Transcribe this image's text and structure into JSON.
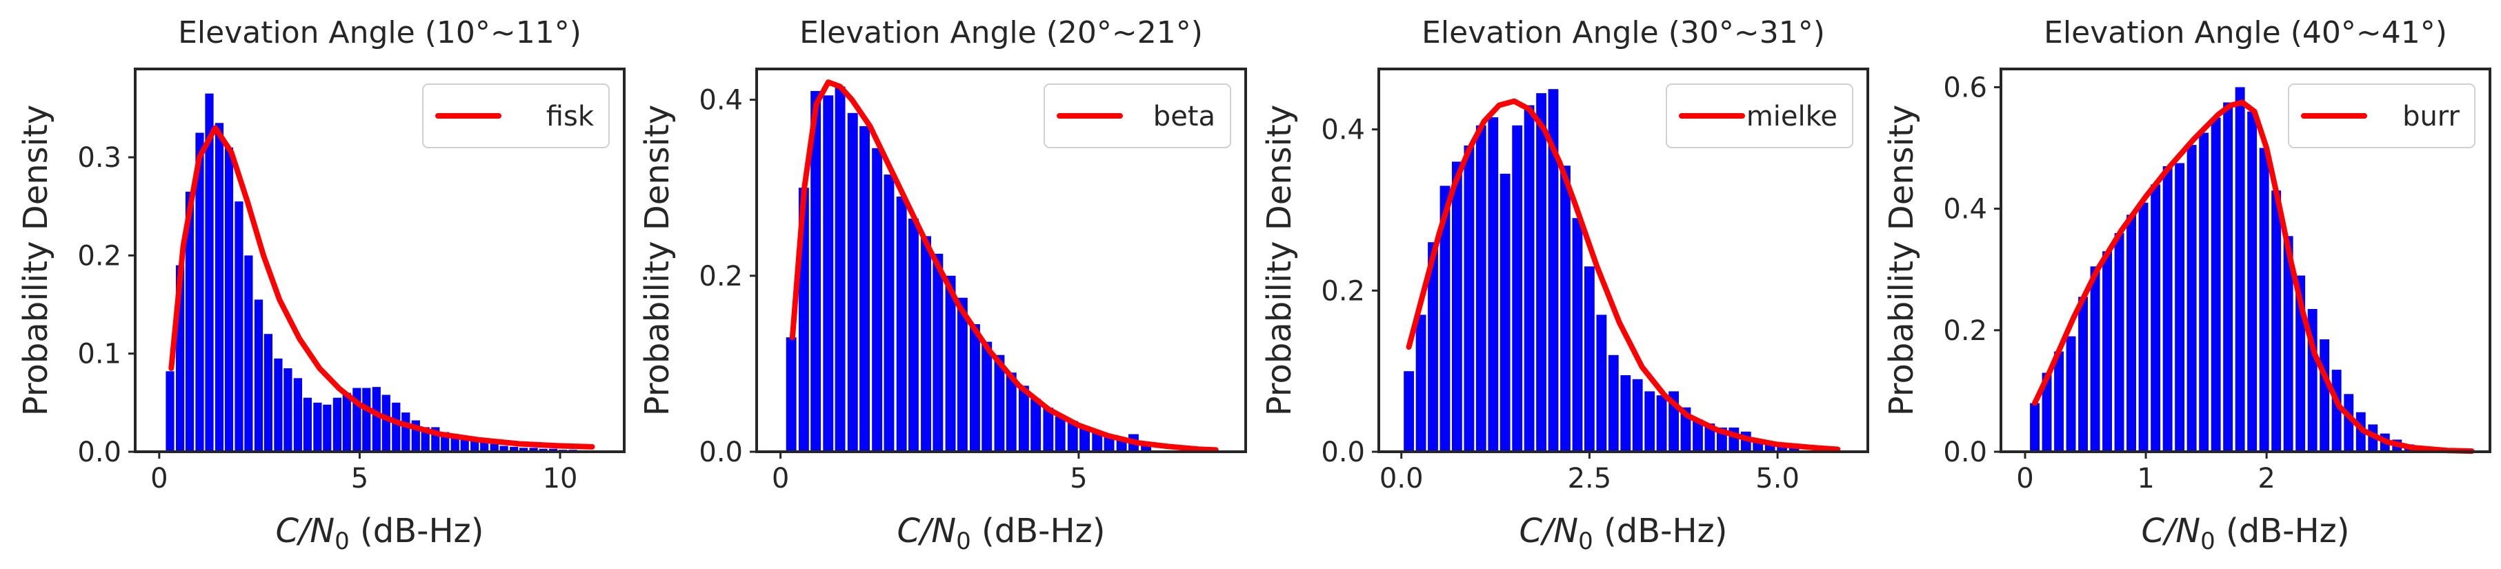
{
  "chart_data": [
    {
      "type": "bar",
      "title": "Elevation Angle (10°~11°)",
      "xlabel": "C/N0 (dB-Hz)",
      "ylabel": "Probability Density",
      "xlim": [
        -0.6,
        11.6
      ],
      "ylim": [
        0,
        0.39
      ],
      "xticks": [
        0,
        5,
        10
      ],
      "xtick_labels": [
        "0",
        "5",
        "10"
      ],
      "yticks": [
        0.0,
        0.1,
        0.2,
        0.3
      ],
      "ytick_labels": [
        "0.0",
        "0.1",
        "0.2",
        "0.3"
      ],
      "bar_color": "#0000ff",
      "bin_width": 0.245,
      "hist_centers": [
        0.27,
        0.52,
        0.76,
        1.01,
        1.25,
        1.5,
        1.74,
        1.99,
        2.23,
        2.48,
        2.72,
        2.97,
        3.21,
        3.46,
        3.7,
        3.95,
        4.19,
        4.44,
        4.68,
        4.93,
        5.17,
        5.42,
        5.66,
        5.91,
        6.15,
        6.4,
        6.64,
        6.89,
        7.13,
        7.38,
        7.62,
        7.87,
        8.11,
        8.36,
        8.6,
        8.85,
        9.09,
        9.34,
        9.58,
        9.83,
        10.07,
        10.32
      ],
      "hist_values": [
        0.082,
        0.19,
        0.265,
        0.325,
        0.365,
        0.335,
        0.31,
        0.255,
        0.2,
        0.155,
        0.12,
        0.095,
        0.085,
        0.075,
        0.055,
        0.05,
        0.048,
        0.055,
        0.06,
        0.065,
        0.065,
        0.066,
        0.058,
        0.05,
        0.04,
        0.032,
        0.025,
        0.025,
        0.02,
        0.018,
        0.015,
        0.012,
        0.01,
        0.008,
        0.006,
        0.005,
        0.004,
        0.004,
        0.003,
        0.003,
        0.002,
        0.002
      ],
      "series": [
        {
          "name": "fisk",
          "color": "#ff0000",
          "x": [
            0.3,
            0.6,
            1.0,
            1.4,
            1.8,
            2.2,
            2.6,
            3.0,
            3.5,
            4.0,
            4.5,
            5.0,
            5.5,
            6.0,
            7.0,
            8.0,
            9.0,
            10.0,
            10.8
          ],
          "y": [
            0.085,
            0.21,
            0.3,
            0.33,
            0.305,
            0.255,
            0.2,
            0.155,
            0.115,
            0.085,
            0.064,
            0.048,
            0.037,
            0.029,
            0.018,
            0.012,
            0.008,
            0.006,
            0.005
          ]
        }
      ],
      "legend_position": "top-right",
      "grid": false
    },
    {
      "type": "bar",
      "title": "Elevation Angle (20°~21°)",
      "xlabel": "C/N0 (dB-Hz)",
      "ylabel": "Probability Density",
      "xlim": [
        -0.4,
        7.8
      ],
      "ylim": [
        0,
        0.435
      ],
      "xticks": [
        0,
        5
      ],
      "xtick_labels": [
        "0",
        "5"
      ],
      "yticks": [
        0.0,
        0.2,
        0.4
      ],
      "ytick_labels": [
        "0.0",
        "0.2",
        "0.4"
      ],
      "bar_color": "#0000ff",
      "bin_width": 0.2,
      "hist_centers": [
        0.18,
        0.39,
        0.59,
        0.8,
        1.0,
        1.21,
        1.41,
        1.62,
        1.82,
        2.03,
        2.23,
        2.44,
        2.64,
        2.85,
        3.05,
        3.26,
        3.46,
        3.67,
        3.87,
        4.08,
        4.28,
        4.49,
        4.69,
        4.9,
        5.1,
        5.31,
        5.51,
        5.72,
        5.92,
        6.13
      ],
      "hist_values": [
        0.13,
        0.3,
        0.41,
        0.405,
        0.415,
        0.385,
        0.37,
        0.345,
        0.315,
        0.29,
        0.265,
        0.245,
        0.225,
        0.2,
        0.175,
        0.145,
        0.125,
        0.11,
        0.09,
        0.075,
        0.06,
        0.05,
        0.04,
        0.035,
        0.028,
        0.022,
        0.018,
        0.015,
        0.02,
        0.01
      ],
      "series": [
        {
          "name": "beta",
          "color": "#ff0000",
          "x": [
            0.2,
            0.4,
            0.6,
            0.8,
            1.0,
            1.2,
            1.5,
            2.0,
            2.5,
            3.0,
            3.5,
            4.0,
            4.5,
            5.0,
            5.5,
            6.0,
            6.5,
            7.0,
            7.3
          ],
          "y": [
            0.13,
            0.3,
            0.395,
            0.42,
            0.415,
            0.4,
            0.37,
            0.3,
            0.23,
            0.165,
            0.115,
            0.075,
            0.048,
            0.03,
            0.018,
            0.01,
            0.006,
            0.003,
            0.002
          ]
        }
      ],
      "legend_position": "top-right",
      "grid": false
    },
    {
      "type": "bar",
      "title": "Elevation Angle (30°~31°)",
      "xlabel": "C/N0 (dB-Hz)",
      "ylabel": "Probability Density",
      "xlim": [
        -0.3,
        6.2
      ],
      "ylim": [
        0,
        0.475
      ],
      "xticks": [
        0.0,
        2.5,
        5.0
      ],
      "xtick_labels": [
        "0.0",
        "2.5",
        "5.0"
      ],
      "yticks": [
        0.0,
        0.2,
        0.4
      ],
      "ytick_labels": [
        "0.0",
        "0.2",
        "0.4"
      ],
      "bar_color": "#0000ff",
      "bin_width": 0.158,
      "hist_centers": [
        0.1,
        0.26,
        0.42,
        0.58,
        0.74,
        0.9,
        1.06,
        1.22,
        1.38,
        1.54,
        1.7,
        1.86,
        2.02,
        2.18,
        2.34,
        2.5,
        2.66,
        2.82,
        2.98,
        3.14,
        3.3,
        3.46,
        3.62,
        3.78,
        3.94,
        4.1,
        4.26,
        4.42,
        4.58,
        4.74,
        4.9,
        5.06,
        5.22
      ],
      "hist_values": [
        0.1,
        0.17,
        0.26,
        0.33,
        0.36,
        0.38,
        0.405,
        0.415,
        0.345,
        0.405,
        0.43,
        0.445,
        0.45,
        0.355,
        0.29,
        0.23,
        0.17,
        0.12,
        0.095,
        0.09,
        0.075,
        0.07,
        0.075,
        0.055,
        0.04,
        0.035,
        0.03,
        0.03,
        0.025,
        0.015,
        0.01,
        0.01,
        0.008
      ],
      "series": [
        {
          "name": "mielke",
          "color": "#ff0000",
          "x": [
            0.1,
            0.3,
            0.5,
            0.7,
            0.9,
            1.1,
            1.3,
            1.5,
            1.7,
            1.9,
            2.1,
            2.3,
            2.6,
            2.9,
            3.2,
            3.5,
            3.8,
            4.2,
            4.6,
            5.0,
            5.5,
            5.8
          ],
          "y": [
            0.13,
            0.2,
            0.27,
            0.33,
            0.375,
            0.41,
            0.43,
            0.435,
            0.425,
            0.4,
            0.36,
            0.31,
            0.23,
            0.16,
            0.105,
            0.07,
            0.045,
            0.027,
            0.016,
            0.009,
            0.005,
            0.003
          ]
        }
      ],
      "legend_position": "top-right",
      "grid": false
    },
    {
      "type": "bar",
      "title": "Elevation Angle (40°~41°)",
      "xlabel": "C/N0 (dB-Hz)",
      "ylabel": "Probability Density",
      "xlim": [
        -0.2,
        3.85
      ],
      "ylim": [
        0,
        0.63
      ],
      "xticks": [
        0,
        1,
        2
      ],
      "xtick_labels": [
        "0",
        "1",
        "2"
      ],
      "yticks": [
        0.0,
        0.2,
        0.4,
        0.6
      ],
      "ytick_labels": [
        "0.0",
        "0.2",
        "0.4",
        "0.6"
      ],
      "bar_color": "#0000ff",
      "bin_width": 0.092,
      "hist_centers": [
        0.08,
        0.18,
        0.28,
        0.38,
        0.48,
        0.58,
        0.68,
        0.78,
        0.88,
        0.98,
        1.08,
        1.18,
        1.28,
        1.38,
        1.48,
        1.58,
        1.68,
        1.78,
        1.88,
        1.98,
        2.08,
        2.18,
        2.28,
        2.38,
        2.48,
        2.58,
        2.68,
        2.78,
        2.88,
        2.98,
        3.08,
        3.18,
        3.28,
        3.38,
        3.48
      ],
      "hist_values": [
        0.08,
        0.13,
        0.165,
        0.19,
        0.255,
        0.305,
        0.33,
        0.36,
        0.39,
        0.41,
        0.44,
        0.47,
        0.475,
        0.505,
        0.525,
        0.55,
        0.575,
        0.6,
        0.56,
        0.5,
        0.43,
        0.355,
        0.29,
        0.235,
        0.185,
        0.135,
        0.095,
        0.065,
        0.045,
        0.03,
        0.02,
        0.012,
        0.008,
        0.005,
        0.003
      ],
      "series": [
        {
          "name": "burr",
          "color": "#ff0000",
          "x": [
            0.08,
            0.2,
            0.4,
            0.6,
            0.8,
            1.0,
            1.2,
            1.4,
            1.6,
            1.7,
            1.8,
            1.9,
            2.0,
            2.1,
            2.2,
            2.3,
            2.4,
            2.6,
            2.8,
            3.0,
            3.2,
            3.5,
            3.7
          ],
          "y": [
            0.08,
            0.13,
            0.22,
            0.3,
            0.365,
            0.42,
            0.47,
            0.515,
            0.555,
            0.57,
            0.575,
            0.56,
            0.5,
            0.41,
            0.315,
            0.23,
            0.16,
            0.075,
            0.035,
            0.016,
            0.007,
            0.002,
            0.001
          ]
        }
      ],
      "legend_position": "top-right",
      "grid": false
    }
  ]
}
